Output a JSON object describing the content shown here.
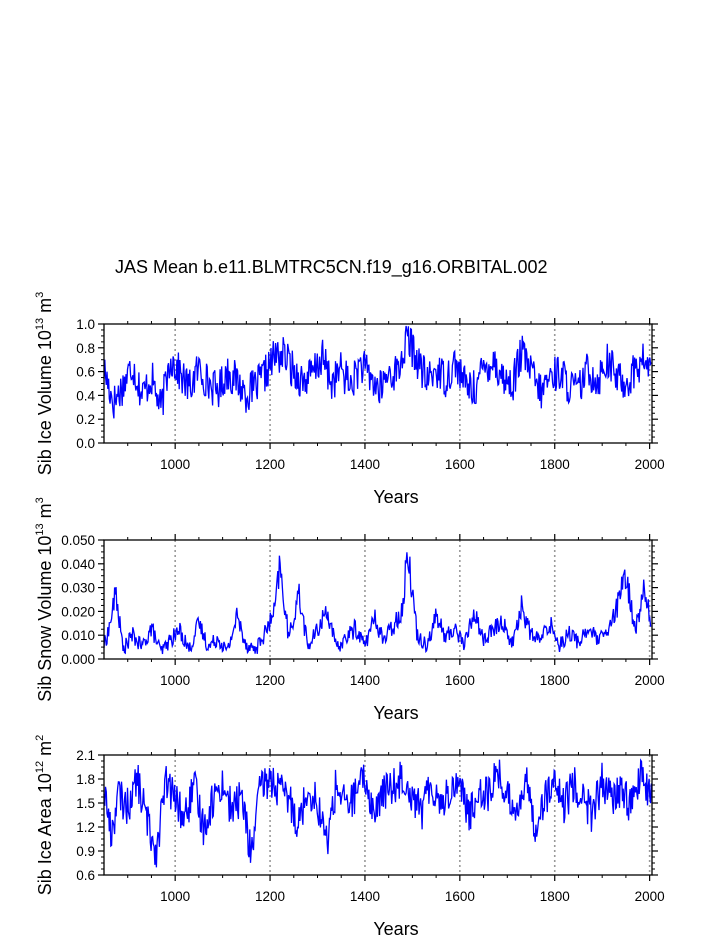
{
  "title": "JAS Mean b.e11.BLMTRC5CN.f19_g16.ORBITAL.002",
  "chart_data": [
    {
      "type": "line",
      "name": "sib-ice-volume",
      "ylabel": {
        "base": "Sib Ice Volume 10",
        "exp1": "13",
        "unit": " m",
        "exp2": "3"
      },
      "xlabel": "Years",
      "xlim": [
        850,
        2005
      ],
      "ylim": [
        0.0,
        1.0
      ],
      "xticks": [
        1000,
        1200,
        1400,
        1600,
        1800,
        2000
      ],
      "xtick_labels": [
        "1000",
        "1200",
        "1400",
        "1600",
        "1800",
        "2000"
      ],
      "yticks": [
        0.0,
        0.2,
        0.4,
        0.6,
        0.8,
        1.0
      ],
      "ytick_labels": [
        "0.0",
        "0.2",
        "0.4",
        "0.6",
        "0.8",
        "1.0"
      ],
      "grid": "vertical-dotted",
      "color": "#0000ff",
      "x": [
        850,
        870,
        890,
        910,
        930,
        950,
        970,
        990,
        1010,
        1030,
        1050,
        1070,
        1090,
        1110,
        1130,
        1150,
        1170,
        1190,
        1210,
        1230,
        1250,
        1270,
        1290,
        1310,
        1330,
        1350,
        1370,
        1390,
        1410,
        1430,
        1450,
        1470,
        1490,
        1510,
        1530,
        1550,
        1570,
        1590,
        1610,
        1630,
        1650,
        1670,
        1690,
        1710,
        1730,
        1750,
        1770,
        1790,
        1810,
        1830,
        1850,
        1870,
        1890,
        1910,
        1930,
        1950,
        1970,
        1990,
        2005
      ],
      "values": [
        0.62,
        0.34,
        0.48,
        0.66,
        0.4,
        0.55,
        0.28,
        0.72,
        0.58,
        0.46,
        0.63,
        0.5,
        0.44,
        0.6,
        0.52,
        0.41,
        0.47,
        0.58,
        0.73,
        0.74,
        0.6,
        0.52,
        0.58,
        0.72,
        0.5,
        0.62,
        0.48,
        0.66,
        0.56,
        0.44,
        0.58,
        0.6,
        0.88,
        0.7,
        0.52,
        0.62,
        0.54,
        0.68,
        0.5,
        0.45,
        0.62,
        0.7,
        0.55,
        0.48,
        0.76,
        0.6,
        0.42,
        0.56,
        0.6,
        0.48,
        0.44,
        0.62,
        0.52,
        0.7,
        0.56,
        0.5,
        0.62,
        0.7,
        0.58
      ]
    },
    {
      "type": "line",
      "name": "sib-snow-volume",
      "ylabel": {
        "base": "Sib Snow Volume 10",
        "exp1": "13",
        "unit": " m",
        "exp2": "3"
      },
      "xlabel": "Years",
      "xlim": [
        850,
        2005
      ],
      "ylim": [
        0.0,
        0.05
      ],
      "xticks": [
        1000,
        1200,
        1400,
        1600,
        1800,
        2000
      ],
      "xtick_labels": [
        "1000",
        "1200",
        "1400",
        "1600",
        "1800",
        "2000"
      ],
      "yticks": [
        0.0,
        0.01,
        0.02,
        0.03,
        0.04,
        0.05
      ],
      "ytick_labels": [
        "0.000",
        "0.010",
        "0.020",
        "0.030",
        "0.040",
        "0.050"
      ],
      "grid": "vertical-dotted",
      "color": "#0000ff",
      "x": [
        850,
        860,
        875,
        890,
        910,
        930,
        950,
        970,
        990,
        1010,
        1030,
        1050,
        1070,
        1090,
        1110,
        1130,
        1150,
        1170,
        1190,
        1210,
        1220,
        1240,
        1260,
        1280,
        1300,
        1320,
        1340,
        1360,
        1380,
        1400,
        1420,
        1440,
        1460,
        1480,
        1490,
        1510,
        1530,
        1550,
        1570,
        1590,
        1610,
        1630,
        1650,
        1670,
        1690,
        1710,
        1730,
        1750,
        1770,
        1790,
        1810,
        1830,
        1850,
        1870,
        1890,
        1910,
        1930,
        1950,
        1970,
        1990,
        2005
      ],
      "values": [
        0.006,
        0.012,
        0.028,
        0.004,
        0.01,
        0.005,
        0.013,
        0.003,
        0.008,
        0.012,
        0.004,
        0.015,
        0.005,
        0.009,
        0.003,
        0.018,
        0.006,
        0.004,
        0.011,
        0.02,
        0.039,
        0.008,
        0.028,
        0.005,
        0.012,
        0.021,
        0.004,
        0.009,
        0.013,
        0.006,
        0.017,
        0.008,
        0.014,
        0.022,
        0.047,
        0.01,
        0.006,
        0.018,
        0.009,
        0.013,
        0.006,
        0.02,
        0.008,
        0.012,
        0.016,
        0.006,
        0.022,
        0.01,
        0.008,
        0.015,
        0.006,
        0.011,
        0.007,
        0.013,
        0.008,
        0.01,
        0.021,
        0.035,
        0.012,
        0.031,
        0.009
      ]
    },
    {
      "type": "line",
      "name": "sib-ice-area",
      "ylabel": {
        "base": "Sib Ice Area 10",
        "exp1": "12",
        "unit": " m",
        "exp2": "2"
      },
      "xlabel": "Years",
      "xlim": [
        850,
        2005
      ],
      "ylim": [
        0.6,
        2.1
      ],
      "xticks": [
        1000,
        1200,
        1400,
        1600,
        1800,
        2000
      ],
      "xtick_labels": [
        "1000",
        "1200",
        "1400",
        "1600",
        "1800",
        "2000"
      ],
      "yticks": [
        0.6,
        0.9,
        1.2,
        1.5,
        1.8,
        2.1
      ],
      "ytick_labels": [
        "0.6",
        "0.9",
        "1.2",
        "1.5",
        "1.8",
        "2.1"
      ],
      "grid": "vertical-dotted",
      "color": "#0000ff",
      "x": [
        850,
        865,
        880,
        900,
        920,
        940,
        960,
        980,
        1000,
        1020,
        1040,
        1060,
        1080,
        1100,
        1120,
        1140,
        1160,
        1180,
        1200,
        1220,
        1240,
        1260,
        1280,
        1300,
        1320,
        1340,
        1360,
        1380,
        1400,
        1420,
        1440,
        1460,
        1480,
        1500,
        1520,
        1540,
        1560,
        1580,
        1600,
        1620,
        1640,
        1660,
        1680,
        1700,
        1720,
        1740,
        1760,
        1780,
        1800,
        1820,
        1840,
        1860,
        1880,
        1900,
        1920,
        1940,
        1960,
        1980,
        2005
      ],
      "values": [
        1.7,
        1.1,
        1.6,
        1.45,
        1.8,
        1.3,
        0.9,
        1.75,
        1.55,
        1.3,
        1.7,
        1.2,
        1.55,
        1.75,
        1.4,
        1.6,
        0.85,
        1.7,
        1.8,
        1.65,
        1.55,
        1.25,
        1.7,
        1.5,
        1.0,
        1.75,
        1.45,
        1.6,
        1.8,
        1.35,
        1.65,
        1.7,
        1.85,
        1.6,
        1.4,
        1.75,
        1.5,
        1.65,
        1.8,
        1.3,
        1.7,
        1.6,
        1.9,
        1.55,
        1.45,
        1.75,
        1.2,
        1.6,
        1.7,
        1.45,
        1.75,
        1.55,
        1.35,
        1.8,
        1.5,
        1.7,
        1.45,
        1.85,
        1.5
      ]
    }
  ]
}
